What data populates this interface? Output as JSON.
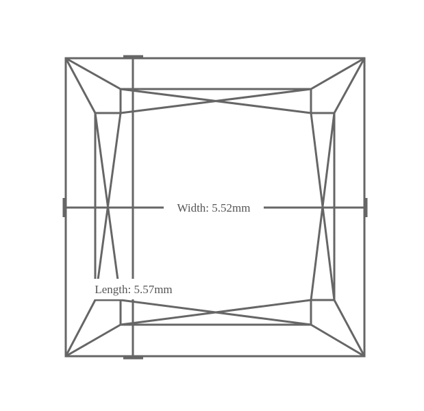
{
  "diagram": {
    "shape": "princess-cut-gem-outline",
    "line_color": "#666666",
    "text_color": "#555555",
    "width_label": "Width: 5.52mm",
    "length_label": "Length: 5.57mm"
  }
}
